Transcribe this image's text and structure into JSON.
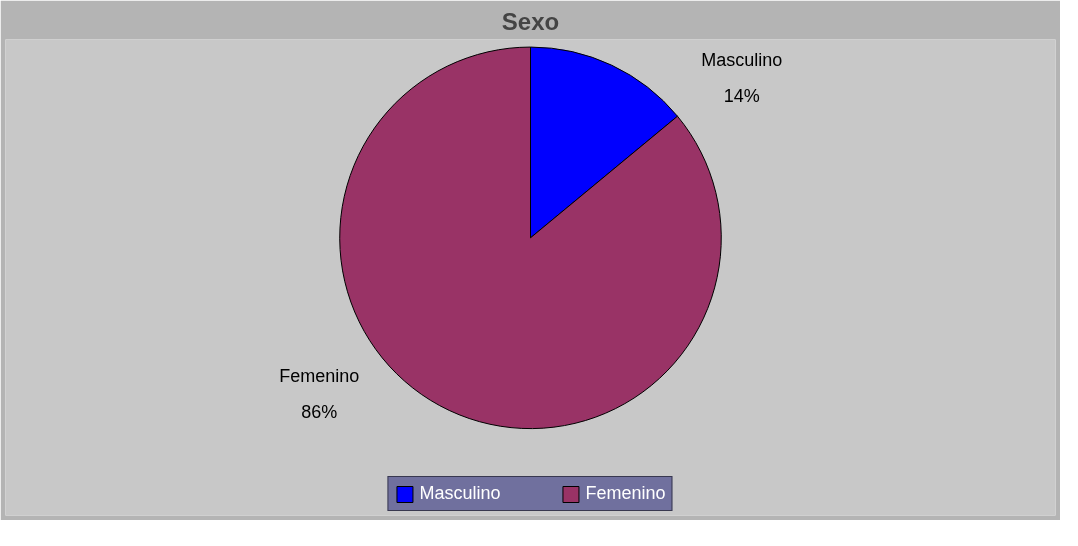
{
  "chart_data": {
    "type": "pie",
    "title": "Sexo",
    "categories": [
      "Masculino",
      "Femenino"
    ],
    "values": [
      14,
      86
    ],
    "colors": [
      "#0000ff",
      "#993366"
    ],
    "value_labels": [
      "14%",
      "86%"
    ],
    "legend": "bottom"
  }
}
